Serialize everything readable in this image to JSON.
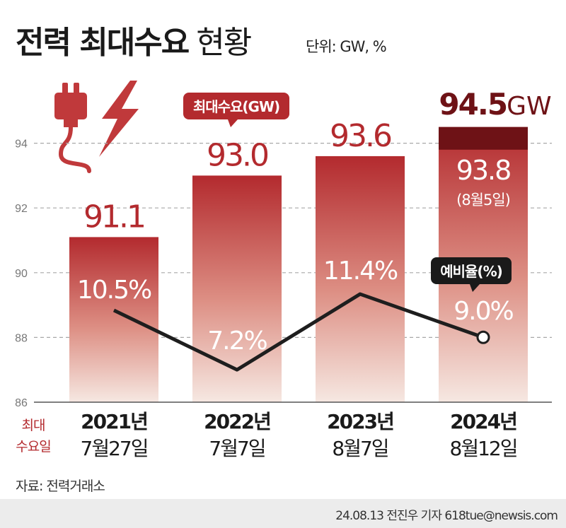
{
  "header": {
    "title_bold": "전력 최대수요",
    "title_light": "현황",
    "unit": "단위: GW, %"
  },
  "chart_data": {
    "type": "bar",
    "categories": [
      "2021년",
      "2022년",
      "2023년",
      "2024년"
    ],
    "dates": [
      "7월27일",
      "7월7일",
      "8월7일",
      "8월12일"
    ],
    "series": [
      {
        "name": "최대수요(GW)",
        "values": [
          91.1,
          93.0,
          93.6,
          94.5
        ],
        "labels": [
          "91.1",
          "93.0",
          "93.6",
          ""
        ]
      },
      {
        "name": "예비율(%)",
        "type": "line",
        "values": [
          10.5,
          7.2,
          11.4,
          9.0
        ],
        "labels": [
          "10.5%",
          "7.2%",
          "11.4%",
          "9.0%"
        ]
      }
    ],
    "highlight": {
      "value_bold": "94.5",
      "unit": "GW"
    },
    "secondary_bar": {
      "value": 93.8,
      "label": "93.8",
      "date_label": "(8월5일)"
    },
    "y_ticks": [
      86,
      88,
      90,
      92,
      94
    ],
    "ylim": [
      86,
      95
    ],
    "row_label_line1": "최대",
    "row_label_line2": "수요일",
    "grid": true
  },
  "source": "자료: 전력거래소",
  "credit": "24.08.13 전진우 기자 618tue@newsis.com",
  "colors": {
    "bar_top": "#b32a2e",
    "bar_bottom": "#f4e4dd",
    "peak": "#6e1216",
    "accent_text": "#b32a2e",
    "line": "#1e1e1e",
    "grid": "#a8a8a8"
  }
}
